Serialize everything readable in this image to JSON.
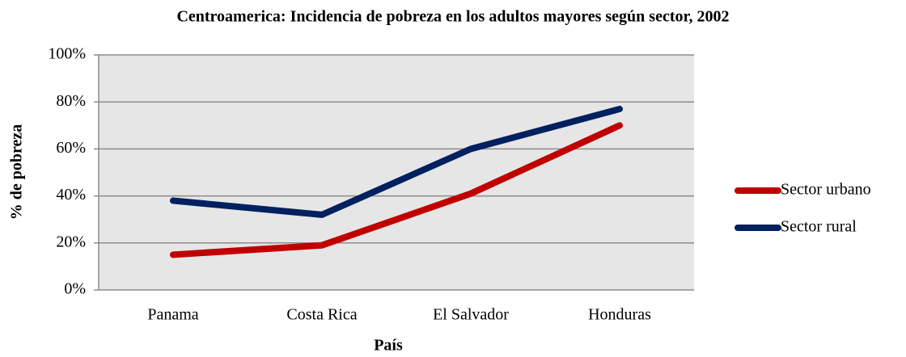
{
  "chart_data": {
    "type": "line",
    "title": "Centroamerica: Incidencia de pobreza en los adultos mayores según sector, 2002",
    "x_label": "País",
    "y_label": "% de pobreza",
    "categories": [
      "Panama",
      "Costa Rica",
      "El Salvador",
      "Honduras"
    ],
    "series": [
      {
        "name": "Sector urbano",
        "color": "#c00000",
        "values": [
          15,
          19,
          41,
          70
        ]
      },
      {
        "name": "Sector rural",
        "color": "#002060",
        "values": [
          38,
          32,
          60,
          77
        ]
      }
    ],
    "ylim": [
      0,
      100
    ],
    "yticks": [
      {
        "value": 0,
        "label": "0%"
      },
      {
        "value": 20,
        "label": "20%"
      },
      {
        "value": 40,
        "label": "40%"
      },
      {
        "value": 60,
        "label": "60%"
      },
      {
        "value": 80,
        "label": "80%"
      },
      {
        "value": 100,
        "label": "100%"
      }
    ],
    "grid": true,
    "legend": "right"
  }
}
